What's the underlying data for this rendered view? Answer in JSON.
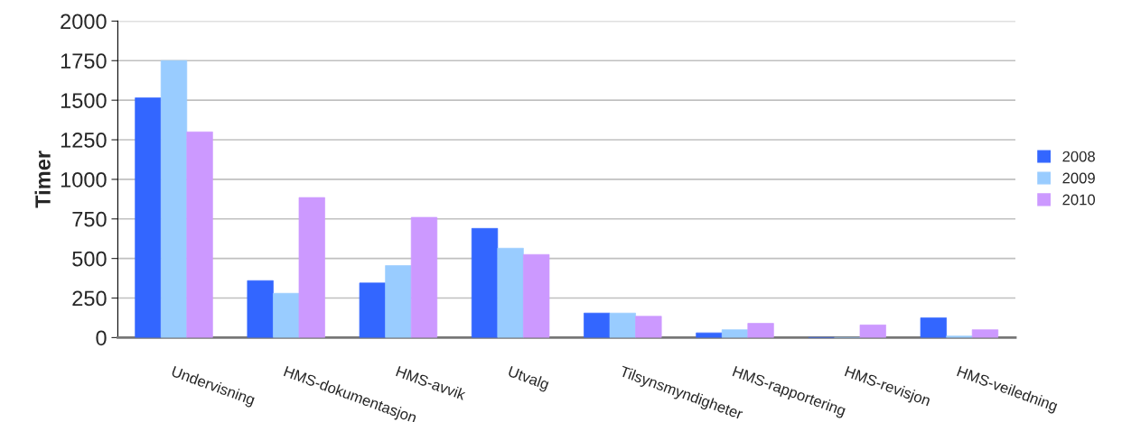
{
  "chart_data": {
    "type": "bar",
    "ylabel": "Timer",
    "categories": [
      "Undervisning",
      "HMS-dokumentasjon",
      "HMS-avvik",
      "Utvalg",
      "Tilsynsmyndigheter",
      "HMS-rapportering",
      "HMS-revisjon",
      "HMS-veiledning"
    ],
    "series": [
      {
        "name": "2008",
        "color": "#3366ff",
        "values": [
          1515,
          360,
          345,
          690,
          155,
          30,
          0,
          125
        ]
      },
      {
        "name": "2009",
        "color": "#99ccff",
        "values": [
          1750,
          280,
          455,
          565,
          155,
          50,
          0,
          10
        ]
      },
      {
        "name": "2010",
        "color": "#cc99ff",
        "values": [
          1300,
          885,
          760,
          525,
          135,
          90,
          80,
          50
        ]
      }
    ],
    "ylim": [
      0,
      2000
    ],
    "yticks": [
      0,
      250,
      500,
      750,
      1000,
      1250,
      1500,
      1750,
      2000
    ],
    "grid": "y",
    "legend": "right"
  }
}
